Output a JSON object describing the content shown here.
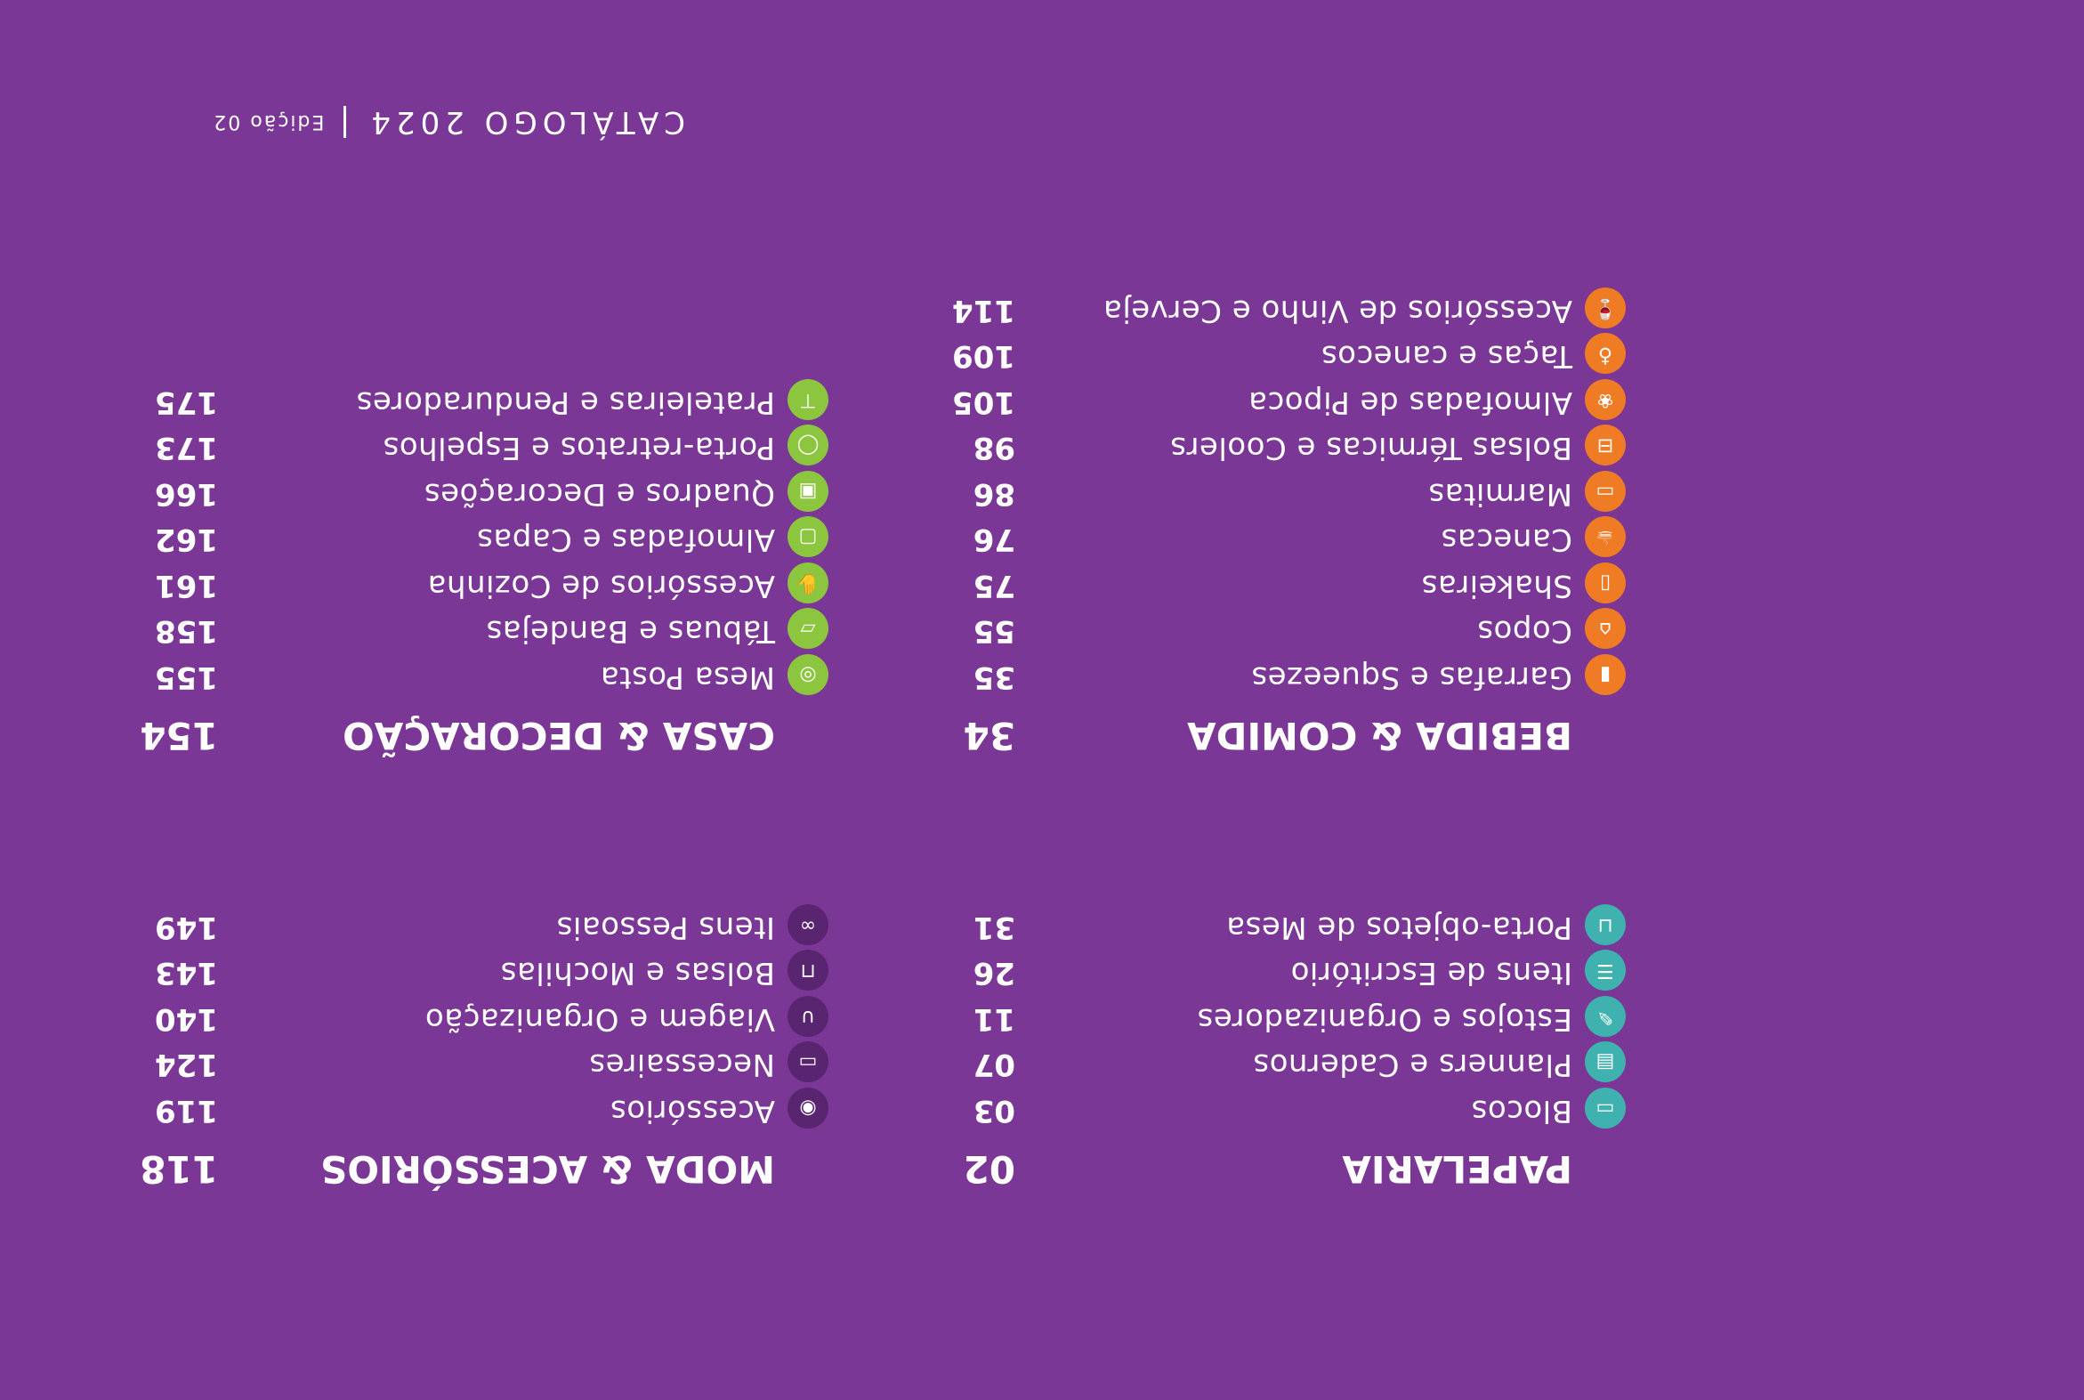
{
  "header": {
    "brand": "CATÁLOGO 2024",
    "edition": "Edição 02"
  },
  "colors": {
    "background": "#7a3795",
    "papelaria": "#3fb2b0",
    "bebida": "#ef7b24",
    "casa": "#8cc63f",
    "moda": "#5a2570"
  },
  "sections": {
    "papelaria": {
      "title": "PAPELARIA",
      "page": "02",
      "items": [
        {
          "label": "Blocos",
          "page": "03",
          "icon": "notepad-icon"
        },
        {
          "label": "Planners e Cadernos",
          "page": "07",
          "icon": "notebook-icon"
        },
        {
          "label": "Estojos e Organizadores",
          "page": "11",
          "icon": "pencil-case-icon"
        },
        {
          "label": "Itens de Escritório",
          "page": "26",
          "icon": "office-item-icon"
        },
        {
          "label": "Porta-objetos de Mesa",
          "page": "31",
          "icon": "desk-holder-icon"
        }
      ]
    },
    "moda": {
      "title": "MODA & ACESSÓRIOS",
      "page": "118",
      "items": [
        {
          "label": "Acessórios",
          "page": "119",
          "icon": "accessory-icon"
        },
        {
          "label": "Necessaires",
          "page": "124",
          "icon": "toiletry-bag-icon"
        },
        {
          "label": "Viagem e Organização",
          "page": "140",
          "icon": "travel-pillow-icon"
        },
        {
          "label": "Bolsas e Mochilas",
          "page": "143",
          "icon": "backpack-icon"
        },
        {
          "label": "Itens Pessoais",
          "page": "149",
          "icon": "glasses-icon"
        }
      ]
    },
    "bebida": {
      "title": "BEBIDA & COMIDA",
      "page": "34",
      "items": [
        {
          "label": "Garrafas e Squeezes",
          "page": "35",
          "icon": "bottle-icon"
        },
        {
          "label": "Copos",
          "page": "55",
          "icon": "cup-icon"
        },
        {
          "label": "Shakeiras",
          "page": "75",
          "icon": "shaker-icon"
        },
        {
          "label": "Canecas",
          "page": "76",
          "icon": "mug-icon"
        },
        {
          "label": "Marmitas",
          "page": "86",
          "icon": "lunchbox-icon"
        },
        {
          "label": "Bolsas Térmicas e Coolers",
          "page": "98",
          "icon": "cooler-bag-icon"
        },
        {
          "label": "Almofadas de Pipoca",
          "page": "105",
          "icon": "popcorn-icon"
        },
        {
          "label": "Taças e canecos",
          "page": "109",
          "icon": "glass-icon"
        },
        {
          "label": "Acessórios de Vinho e Cerveja",
          "page": "114",
          "icon": "wine-icon"
        }
      ]
    },
    "casa": {
      "title": "CASA & DECORAÇÃO",
      "page": "154",
      "items": [
        {
          "label": "Mesa Posta",
          "page": "155",
          "icon": "plate-icon"
        },
        {
          "label": "Tábuas e Bandejas",
          "page": "158",
          "icon": "tray-icon"
        },
        {
          "label": "Acessórios de Cozinha",
          "page": "161",
          "icon": "glove-icon"
        },
        {
          "label": "Almofadas e Capas",
          "page": "162",
          "icon": "cushion-icon"
        },
        {
          "label": "Quadros e Decorações",
          "page": "166",
          "icon": "frame-icon"
        },
        {
          "label": "Porta-retratos e Espelhos",
          "page": "173",
          "icon": "mirror-icon"
        },
        {
          "label": "Prateleiras e Penduradores",
          "page": "175",
          "icon": "shelf-icon"
        }
      ]
    }
  }
}
